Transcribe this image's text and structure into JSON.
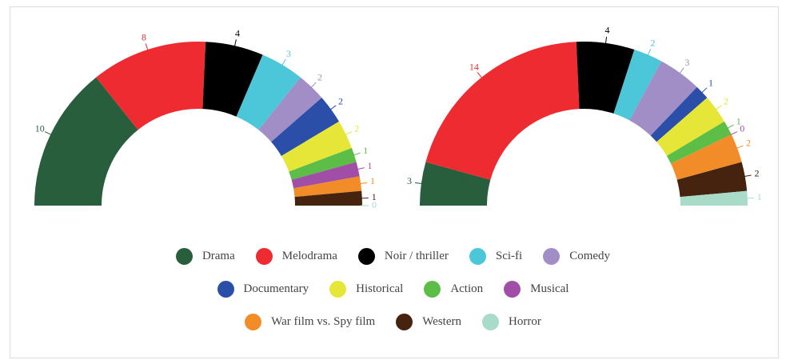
{
  "legend": [
    {
      "name": "Drama",
      "color": "#285e3c"
    },
    {
      "name": "Melodrama",
      "color": "#ee2b31"
    },
    {
      "name": "Noir / thriller",
      "color": "#000000"
    },
    {
      "name": "Sci-fi",
      "color": "#4cc6d9"
    },
    {
      "name": "Comedy",
      "color": "#a28ec6"
    },
    {
      "name": "Documentary",
      "color": "#2b4fa8"
    },
    {
      "name": "Historical",
      "color": "#e6e639"
    },
    {
      "name": "Action",
      "color": "#5cbd47"
    },
    {
      "name": "Musical",
      "color": "#a04ea6"
    },
    {
      "name": "War film vs. Spy film",
      "color": "#f28c28"
    },
    {
      "name": "Western",
      "color": "#45230f"
    },
    {
      "name": "Horror",
      "color": "#a8dcc8"
    }
  ],
  "chart_data": [
    {
      "type": "semicircle-donut",
      "values": [
        10,
        8,
        4,
        3,
        2,
        2,
        2,
        1,
        1,
        1,
        1,
        0
      ]
    },
    {
      "type": "semicircle-donut",
      "values": [
        3,
        14,
        4,
        2,
        3,
        1,
        2,
        1,
        0,
        2,
        2,
        1
      ]
    }
  ]
}
